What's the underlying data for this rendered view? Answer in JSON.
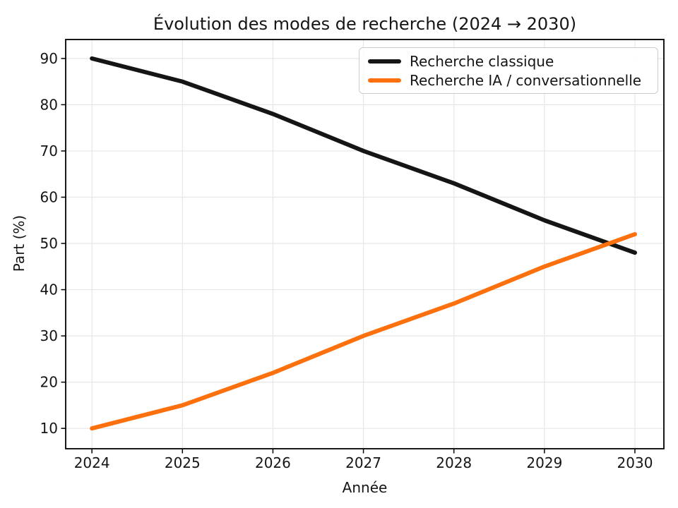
{
  "chart_data": {
    "type": "line",
    "title": "Évolution des modes de recherche (2024 → 2030)",
    "xlabel": "Année",
    "ylabel": "Part (%)",
    "x": [
      2024,
      2025,
      2026,
      2027,
      2028,
      2029,
      2030
    ],
    "xticklabels": [
      "2024",
      "2025",
      "2026",
      "2027",
      "2028",
      "2029",
      "2030"
    ],
    "yticks": [
      10,
      20,
      30,
      40,
      50,
      60,
      70,
      80,
      90
    ],
    "yticklabels": [
      "10",
      "20",
      "30",
      "40",
      "50",
      "60",
      "70",
      "80",
      "90"
    ],
    "series": [
      {
        "name": "Recherche classique",
        "color": "#151515",
        "values": [
          90,
          85,
          78,
          70,
          63,
          55,
          48
        ]
      },
      {
        "name": "Recherche IA / conversationnelle",
        "color": "#fd700e",
        "values": [
          10,
          15,
          22,
          30,
          37,
          45,
          52
        ]
      }
    ],
    "xlim": [
      2023.71,
      2030.32
    ],
    "ylim": [
      5.6,
      94.1
    ],
    "grid": true,
    "legend_position": "upper right",
    "colors": {
      "background": "#ffffff",
      "grid": "#e7e7e7",
      "spine": "#000000",
      "text": "#151515",
      "legend_border": "#cccccc"
    }
  }
}
